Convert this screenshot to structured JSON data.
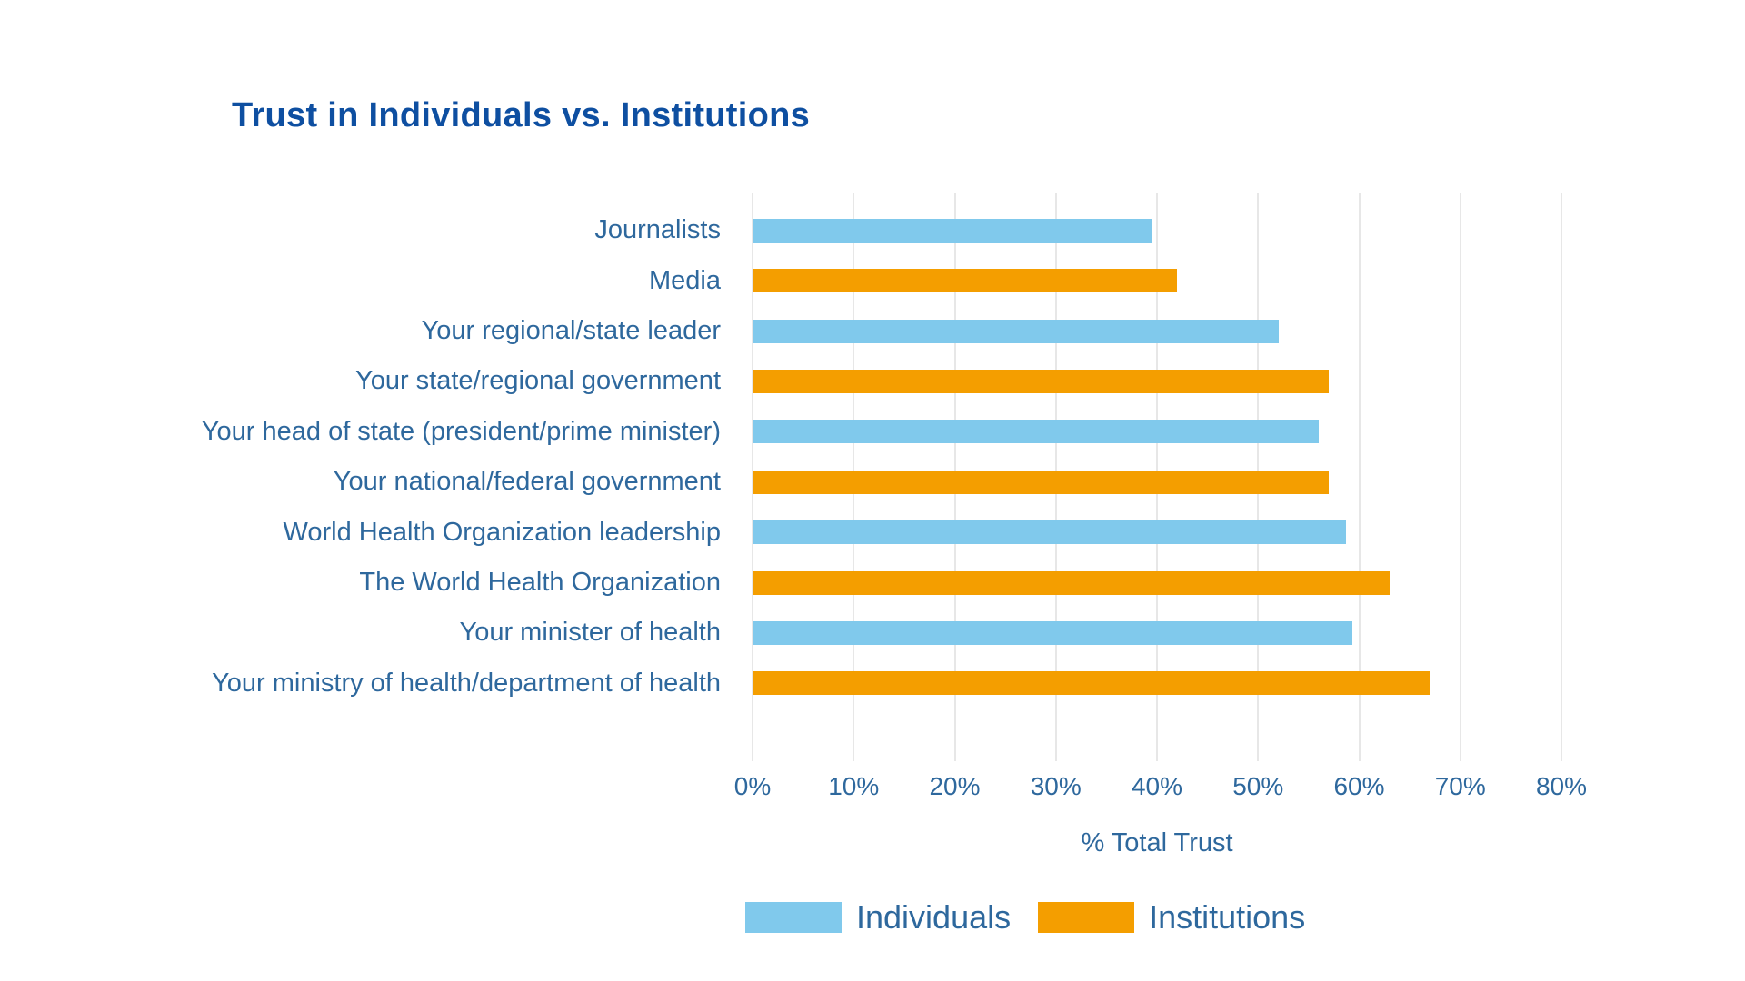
{
  "chart_data": {
    "type": "bar",
    "orientation": "horizontal",
    "title": "Trust in Individuals vs. Institutions",
    "xlabel": "% Total Trust",
    "xlim": [
      0,
      80
    ],
    "x_ticks": [
      "0%",
      "10%",
      "20%",
      "30%",
      "40%",
      "50%",
      "60%",
      "70%",
      "80%"
    ],
    "grid": true,
    "legend_position": "bottom",
    "series": [
      {
        "name": "Individuals",
        "color": "#80C9EC"
      },
      {
        "name": "Institutions",
        "color": "#F49E00"
      }
    ],
    "rows": [
      {
        "label": "Journalists",
        "series": "Individuals",
        "value": 39.5
      },
      {
        "label": "Media",
        "series": "Institutions",
        "value": 42
      },
      {
        "label": "Your regional/state leader",
        "series": "Individuals",
        "value": 52
      },
      {
        "label": "Your state/regional government",
        "series": "Institutions",
        "value": 57
      },
      {
        "label": "Your head of state (president/prime minister)",
        "series": "Individuals",
        "value": 56
      },
      {
        "label": "Your national/federal government",
        "series": "Institutions",
        "value": 57
      },
      {
        "label": "World Health Organization leadership",
        "series": "Individuals",
        "value": 58.7
      },
      {
        "label": "The World Health Organization",
        "series": "Institutions",
        "value": 63
      },
      {
        "label": "Your minister of health",
        "series": "Individuals",
        "value": 59.3
      },
      {
        "label": "Your ministry of health/department of health",
        "series": "Institutions",
        "value": 67
      }
    ]
  },
  "styles": {
    "title_color": "#0E4FA1",
    "label_color": "#2E689D",
    "gridline_color": "#E7E7E7",
    "background": "#FFFFFF"
  }
}
